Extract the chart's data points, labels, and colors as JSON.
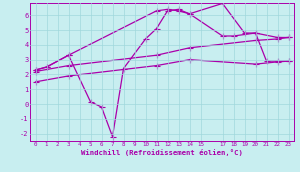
{
  "xlabel": "Windchill (Refroidissement éolien,°C)",
  "bg_color": "#c8eef0",
  "line_color": "#aa00aa",
  "grid_color": "#a0d8dc",
  "xlim": [
    -0.5,
    23.5
  ],
  "ylim": [
    -2.5,
    6.8
  ],
  "xticks": [
    0,
    1,
    2,
    3,
    4,
    5,
    6,
    7,
    8,
    9,
    10,
    11,
    12,
    13,
    14,
    15,
    17,
    18,
    19,
    20,
    21,
    22,
    23
  ],
  "yticks": [
    -2,
    -1,
    0,
    1,
    2,
    3,
    4,
    5,
    6
  ],
  "line1_x": [
    0,
    1,
    3,
    5,
    6,
    7,
    8,
    10,
    11,
    12,
    13,
    14,
    17,
    19,
    20,
    22,
    23
  ],
  "line1_y": [
    2.3,
    2.5,
    3.3,
    0.15,
    -0.2,
    -2.2,
    2.4,
    4.4,
    5.1,
    6.3,
    6.4,
    6.1,
    6.8,
    4.8,
    4.8,
    4.5,
    4.5
  ],
  "line2_x": [
    0,
    1,
    3,
    11,
    12,
    13,
    14,
    17,
    18,
    20,
    21,
    22,
    23
  ],
  "line2_y": [
    2.3,
    2.5,
    3.3,
    6.3,
    6.4,
    6.3,
    6.1,
    4.6,
    4.6,
    4.8,
    2.9,
    2.9,
    2.9
  ],
  "line3_x": [
    0,
    3,
    11,
    14,
    20,
    22,
    23
  ],
  "line3_y": [
    2.2,
    2.6,
    3.3,
    3.8,
    4.3,
    4.4,
    4.5
  ],
  "line4_x": [
    0,
    3,
    11,
    14,
    20,
    22,
    23
  ],
  "line4_y": [
    1.5,
    1.9,
    2.6,
    3.0,
    2.7,
    2.85,
    2.9
  ]
}
